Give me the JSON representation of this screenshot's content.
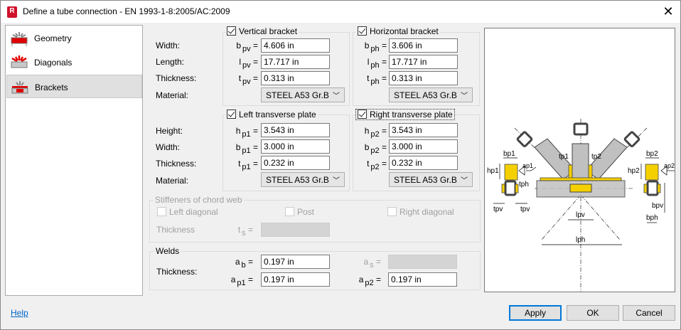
{
  "window": {
    "title": "Define a tube connection - EN 1993-1-8:2005/AC:2009",
    "app_icon": "R",
    "close": "✕"
  },
  "nav": {
    "items": [
      {
        "label": "Geometry",
        "icon": "geometry-icon"
      },
      {
        "label": "Diagonals",
        "icon": "diagonals-icon"
      },
      {
        "label": "Brackets",
        "icon": "brackets-icon",
        "selected": true
      }
    ]
  },
  "labels": {
    "width": "Width:",
    "length": "Length:",
    "thickness": "Thickness:",
    "material": "Material:",
    "height": "Height:"
  },
  "vertical": {
    "title": "Vertical bracket",
    "checked": true,
    "b_sym": "b",
    "b_sub": "pv",
    "b": "4.606 in",
    "l_sym": "l",
    "l_sub": "pv",
    "l": "17.717 in",
    "t_sym": "t",
    "t_sub": "pv",
    "t": "0.313 in",
    "material": "STEEL A53 Gr.B"
  },
  "horizontal": {
    "title": "Horizontal bracket",
    "checked": true,
    "b_sym": "b",
    "b_sub": "ph",
    "b": "3.606 in",
    "l_sym": "l",
    "l_sub": "ph",
    "l": "17.717 in",
    "t_sym": "t",
    "t_sub": "ph",
    "t": "0.313 in",
    "material": "STEEL A53 Gr.B"
  },
  "left_plate": {
    "title": "Left transverse plate",
    "checked": true,
    "h_sym": "h",
    "h_sub": "p1",
    "h": "3.543 in",
    "b_sym": "b",
    "b_sub": "p1",
    "b": "3.000 in",
    "t_sym": "t",
    "t_sub": "p1",
    "t": "0.232 in",
    "material": "STEEL A53 Gr.B"
  },
  "right_plate": {
    "title": "Right transverse plate",
    "checked": true,
    "h_sym": "h",
    "h_sub": "p2",
    "h": "3.543 in",
    "b_sym": "b",
    "b_sub": "p2",
    "b": "3.000 in",
    "t_sym": "t",
    "t_sub": "p2",
    "t": "0.232 in",
    "material": "STEEL A53 Gr.B"
  },
  "stiffeners": {
    "title": "Stiffeners of chord web",
    "left": "Left diagonal",
    "post": "Post",
    "right": "Right diagonal",
    "thickness": "Thickness",
    "ts_sym": "t",
    "ts_sub": "s",
    "ts": ""
  },
  "welds": {
    "title": "Welds",
    "thickness": "Thickness:",
    "ab_sym": "a",
    "ab_sub": "b",
    "ab": "0.197 in",
    "as_sym": "a",
    "as_sub": "s",
    "as": "",
    "ap1_sym": "a",
    "ap1_sub": "p1",
    "ap1": "0.197 in",
    "ap2_sym": "a",
    "ap2_sub": "p2",
    "ap2": "0.197 in"
  },
  "diagram": {
    "bp1": "bp1",
    "bp2": "bp2",
    "tp1": "tp1",
    "tp2": "tp2",
    "hp1": "hp1",
    "hp2": "hp2",
    "ap1": "ap1",
    "ap2": "ap2",
    "tph": "tph",
    "tpv_l": "tpv",
    "tpv_r": "tpv",
    "bpv": "bpv",
    "bph": "bph",
    "lpv": "lpv",
    "lph": "lph"
  },
  "footer": {
    "help": "Help",
    "apply": "Apply",
    "ok": "OK",
    "cancel": "Cancel"
  },
  "colors": {
    "accent": "#0078d7",
    "plate": "#f5d000",
    "icon_red": "#e00000"
  }
}
